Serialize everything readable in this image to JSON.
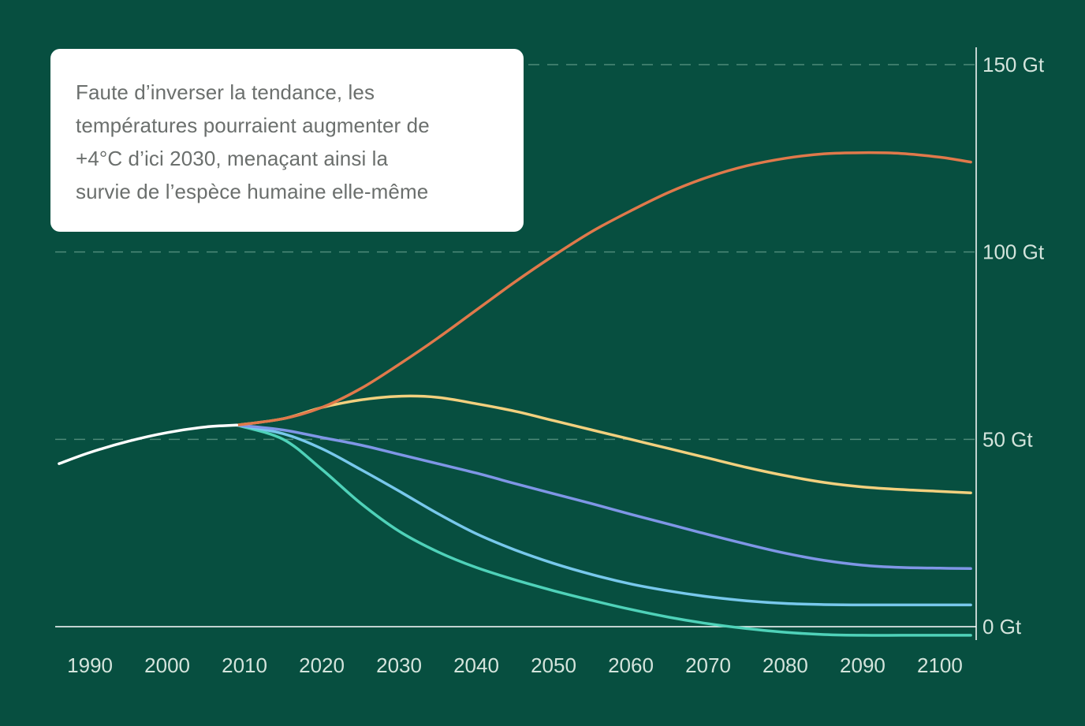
{
  "chart_data": {
    "type": "line",
    "x_unit": "year",
    "y_unit": "Gt",
    "xlim": [
      1985.5,
      2104.7
    ],
    "ylim": [
      0,
      150
    ],
    "x_ticks": [
      1990,
      2000,
      2010,
      2020,
      2030,
      2040,
      2050,
      2060,
      2070,
      2080,
      2090,
      2100
    ],
    "x_tick_labels": [
      "1990",
      "2000",
      "2010",
      "2020",
      "2030",
      "2040",
      "2050",
      "2060",
      "2070",
      "2080",
      "2090",
      "2100"
    ],
    "y_ticks": [
      0,
      50,
      100,
      150
    ],
    "y_tick_labels": [
      "0 Gt",
      "50 Gt",
      "100 Gt",
      "150 Gt"
    ],
    "grid": "horizontal dashed",
    "series": [
      {
        "color": "#ffffff",
        "x": [
          1986,
          1990,
          1995,
          2000,
          2005,
          2009
        ],
        "y": [
          43.5,
          46.5,
          49.5,
          51.8,
          53.3,
          53.8
        ]
      },
      {
        "color": "#E0794B",
        "x": [
          2009,
          2015,
          2020,
          2025,
          2030,
          2035,
          2040,
          2045,
          2050,
          2055,
          2060,
          2065,
          2070,
          2075,
          2080,
          2085,
          2090,
          2095,
          2100,
          2104
        ],
        "y": [
          53.8,
          55.5,
          58.5,
          63.5,
          70,
          77,
          84.5,
          92,
          99,
          105.5,
          111,
          116,
          120,
          123,
          125,
          126.2,
          126.5,
          126.3,
          125.3,
          124
        ]
      },
      {
        "color": "#F2D07E",
        "x": [
          2009,
          2015,
          2020,
          2025,
          2030,
          2035,
          2040,
          2045,
          2050,
          2055,
          2060,
          2065,
          2070,
          2075,
          2080,
          2085,
          2090,
          2095,
          2100,
          2104
        ],
        "y": [
          53.8,
          55.5,
          58.5,
          60.5,
          61.5,
          61.2,
          59.5,
          57.5,
          55,
          52.5,
          50,
          47.5,
          45,
          42.5,
          40.3,
          38.5,
          37.3,
          36.6,
          36.1,
          35.7
        ]
      },
      {
        "color": "#7F96E6",
        "x": [
          2009,
          2015,
          2020,
          2025,
          2030,
          2035,
          2040,
          2045,
          2050,
          2055,
          2060,
          2065,
          2070,
          2075,
          2080,
          2085,
          2090,
          2095,
          2100,
          2104
        ],
        "y": [
          53.8,
          52.5,
          50.5,
          48.5,
          46,
          43.5,
          41,
          38.2,
          35.5,
          32.8,
          30,
          27.3,
          24.6,
          22,
          19.6,
          17.7,
          16.4,
          15.8,
          15.6,
          15.5
        ]
      },
      {
        "color": "#78C8EC",
        "x": [
          2009,
          2015,
          2020,
          2025,
          2030,
          2035,
          2040,
          2045,
          2050,
          2055,
          2060,
          2065,
          2070,
          2075,
          2080,
          2085,
          2090,
          2095,
          2100,
          2104
        ],
        "y": [
          53.8,
          51.5,
          47.5,
          42,
          36.2,
          30.2,
          24.8,
          20.5,
          16.9,
          13.9,
          11.4,
          9.5,
          8,
          6.9,
          6.2,
          5.9,
          5.8,
          5.8,
          5.8,
          5.8
        ]
      },
      {
        "color": "#4FD2B9",
        "x": [
          2009,
          2015,
          2020,
          2025,
          2030,
          2035,
          2040,
          2045,
          2050,
          2055,
          2060,
          2065,
          2070,
          2075,
          2080,
          2085,
          2090,
          2095,
          2100,
          2104
        ],
        "y": [
          53.8,
          50,
          42,
          33,
          25.5,
          20,
          15.8,
          12.5,
          9.6,
          7,
          4.6,
          2.5,
          0.8,
          -0.5,
          -1.5,
          -2.1,
          -2.3,
          -2.3,
          -2.3,
          -2.3
        ]
      }
    ],
    "annotation": "Faute d’inverser la tendance, les températures pourraient augmenter de +4°C d’ici 2030, menaçant ainsi la survie de l’espèce humaine elle-même"
  },
  "callout": {
    "lines": [
      "Faute d’inverser la tendance, les",
      "températures pourraient augmenter de",
      "+4°C d’ici 2030, menaçant ainsi la",
      "survie de l’espèce humaine elle-même"
    ]
  },
  "colors": {
    "background": "#074F40",
    "grid": "#4E8A78",
    "axis": "#FFFFFF",
    "tick_label": "#D4E4DC"
  }
}
